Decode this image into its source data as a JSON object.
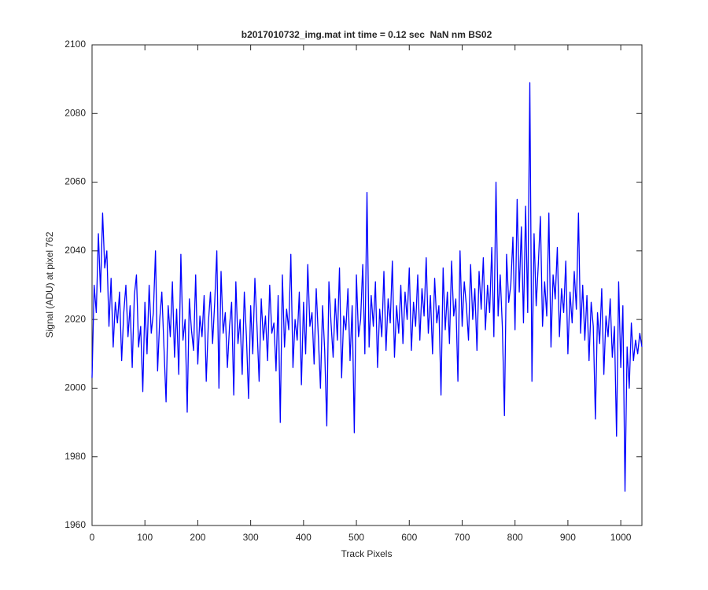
{
  "chart_data": {
    "type": "line",
    "title": "b2017010732_img.mat int time = 0.12 sec  NaN nm BS02",
    "x_label": "Track Pixels",
    "y_label": "Signal (ADU) at pixel 762",
    "xlim": [
      0,
      1040
    ],
    "xticks": [
      0,
      100,
      200,
      300,
      400,
      500,
      600,
      700,
      800,
      900,
      1000
    ],
    "ylim": [
      1960,
      2100
    ],
    "yticks": [
      1960,
      1980,
      2000,
      2020,
      2040,
      2060,
      2080,
      2100
    ],
    "grid": false,
    "x": [
      0,
      4,
      8,
      12,
      16,
      20,
      24,
      28,
      32,
      36,
      40,
      44,
      48,
      52,
      56,
      60,
      64,
      68,
      72,
      76,
      80,
      84,
      88,
      92,
      96,
      100,
      104,
      108,
      112,
      116,
      120,
      124,
      128,
      132,
      136,
      140,
      144,
      148,
      152,
      156,
      160,
      164,
      168,
      172,
      176,
      180,
      184,
      188,
      192,
      196,
      200,
      204,
      208,
      212,
      216,
      220,
      224,
      228,
      232,
      236,
      240,
      244,
      248,
      252,
      256,
      260,
      264,
      268,
      272,
      276,
      280,
      284,
      288,
      292,
      296,
      300,
      304,
      308,
      312,
      316,
      320,
      324,
      328,
      332,
      336,
      340,
      344,
      348,
      352,
      356,
      360,
      364,
      368,
      372,
      376,
      380,
      384,
      388,
      392,
      396,
      400,
      404,
      408,
      412,
      416,
      420,
      424,
      428,
      432,
      436,
      440,
      444,
      448,
      452,
      456,
      460,
      464,
      468,
      472,
      476,
      480,
      484,
      488,
      492,
      496,
      500,
      504,
      508,
      512,
      516,
      520,
      524,
      528,
      532,
      536,
      540,
      544,
      548,
      552,
      556,
      560,
      564,
      568,
      572,
      576,
      580,
      584,
      588,
      592,
      596,
      600,
      604,
      608,
      612,
      616,
      620,
      624,
      628,
      632,
      636,
      640,
      644,
      648,
      652,
      656,
      660,
      664,
      668,
      672,
      676,
      680,
      684,
      688,
      692,
      696,
      700,
      704,
      708,
      712,
      716,
      720,
      724,
      728,
      732,
      736,
      740,
      744,
      748,
      752,
      756,
      760,
      764,
      768,
      772,
      776,
      780,
      784,
      788,
      792,
      796,
      800,
      804,
      808,
      812,
      816,
      820,
      824,
      828,
      832,
      836,
      840,
      844,
      848,
      852,
      856,
      860,
      864,
      868,
      872,
      876,
      880,
      884,
      888,
      892,
      896,
      900,
      904,
      908,
      912,
      916,
      920,
      924,
      928,
      932,
      936,
      940,
      944,
      948,
      952,
      956,
      960,
      964,
      968,
      972,
      976,
      980,
      984,
      988,
      992,
      996,
      1000,
      1004,
      1008,
      1012,
      1016,
      1020,
      1024,
      1028,
      1032,
      1036,
      1040
    ],
    "series": [
      {
        "color": "#0000ff",
        "values": [
          2003,
          2030,
          2022,
          2045,
          2028,
          2051,
          2035,
          2040,
          2018,
          2032,
          2012,
          2025,
          2019,
          2028,
          2008,
          2022,
          2030,
          2015,
          2024,
          2006,
          2027,
          2033,
          2012,
          2018,
          1999,
          2025,
          2010,
          2030,
          2016,
          2022,
          2040,
          2005,
          2020,
          2028,
          2012,
          1996,
          2024,
          2015,
          2031,
          2009,
          2023,
          2004,
          2039,
          2014,
          2020,
          1993,
          2026,
          2017,
          2011,
          2033,
          2007,
          2021,
          2015,
          2027,
          2002,
          2019,
          2028,
          2013,
          2025,
          2040,
          2000,
          2034,
          2016,
          2022,
          2006,
          2018,
          2025,
          1998,
          2031,
          2013,
          2020,
          2004,
          2028,
          2015,
          1997,
          2024,
          2010,
          2032,
          2018,
          2002,
          2026,
          2014,
          2021,
          2008,
          2030,
          2016,
          2019,
          2005,
          2027,
          1990,
          2033,
          2012,
          2023,
          2017,
          2039,
          2006,
          2020,
          2014,
          2028,
          2001,
          2025,
          2010,
          2036,
          2018,
          2022,
          2007,
          2029,
          2015,
          2000,
          2024,
          2011,
          1989,
          2031,
          2019,
          2009,
          2026,
          2014,
          2035,
          2003,
          2021,
          2017,
          2029,
          2008,
          2024,
          1987,
          2033,
          2015,
          2020,
          2036,
          2010,
          2057,
          2012,
          2027,
          2018,
          2031,
          2006,
          2023,
          2015,
          2034,
          2011,
          2026,
          2019,
          2037,
          2009,
          2024,
          2016,
          2030,
          2013,
          2028,
          2020,
          2035,
          2011,
          2025,
          2018,
          2033,
          2014,
          2029,
          2021,
          2038,
          2016,
          2027,
          2010,
          2032,
          2019,
          2024,
          1998,
          2035,
          2017,
          2028,
          2013,
          2037,
          2021,
          2026,
          2002,
          2040,
          2018,
          2031,
          2024,
          2014,
          2036,
          2020,
          2029,
          2011,
          2034,
          2023,
          2038,
          2017,
          2030,
          2022,
          2041,
          2015,
          2060,
          2021,
          2033,
          2018,
          1992,
          2039,
          2025,
          2030,
          2044,
          2017,
          2055,
          2028,
          2047,
          2019,
          2053,
          2022,
          2089,
          2002,
          2045,
          2024,
          2036,
          2050,
          2018,
          2031,
          2021,
          2051,
          2012,
          2033,
          2026,
          2041,
          2015,
          2029,
          2022,
          2037,
          2010,
          2028,
          2019,
          2034,
          2023,
          2051,
          2016,
          2030,
          2014,
          2027,
          2008,
          2025,
          2018,
          1991,
          2022,
          2013,
          2029,
          2004,
          2021,
          2015,
          2026,
          2009,
          2018,
          1986,
          2031,
          2006,
          2024,
          1970,
          2012,
          2000,
          2019,
          2008,
          2014,
          2010,
          2016,
          2012
        ]
      }
    ]
  }
}
